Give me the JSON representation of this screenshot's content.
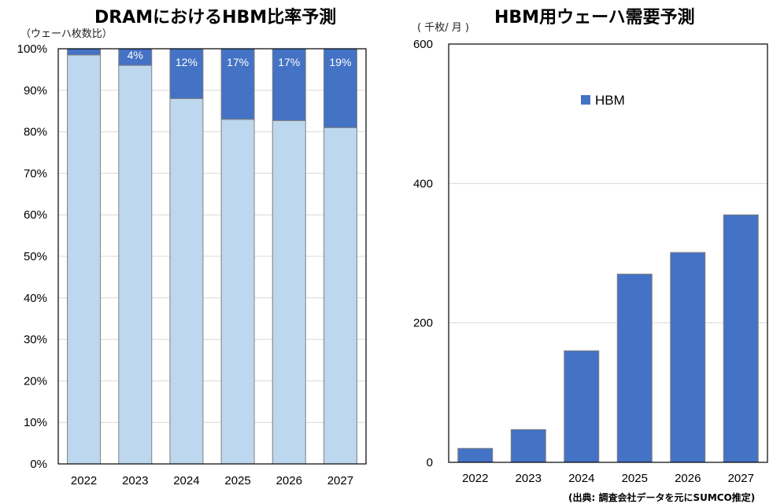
{
  "colors": {
    "base": "#bdd7ee",
    "hbm": "#4472c4",
    "border": "#808080",
    "grid": "#d9d9d9"
  },
  "left": {
    "title": "DRAMにおけるHBM比率予測",
    "unit": "（ウェーハ枚数比）"
  },
  "right": {
    "title": "HBM用ウェーハ需要予測",
    "unit": "( 千枚/ 月 )",
    "legend": "HBM"
  },
  "source": "(出典: 調査会社データを元にSUMCO推定)",
  "chart_data": [
    {
      "type": "bar",
      "stacked": true,
      "title": "DRAMにおけるHBM比率予測",
      "ylabel": "（ウェーハ枚数比）",
      "categories": [
        "2022",
        "2023",
        "2024",
        "2025",
        "2026",
        "2027"
      ],
      "yticks": [
        "0%",
        "10%",
        "20%",
        "30%",
        "40%",
        "50%",
        "60%",
        "70%",
        "80%",
        "90%",
        "100%"
      ],
      "ylim": [
        0,
        100
      ],
      "series": [
        {
          "values": [
            98.5,
            96,
            88,
            83,
            82.7,
            81
          ]
        },
        {
          "values": [
            1.5,
            4,
            12,
            17,
            17.3,
            19
          ]
        }
      ],
      "data_labels": [
        "",
        "4%",
        "12%",
        "17%",
        "17%",
        "19%"
      ],
      "grid": true
    },
    {
      "type": "bar",
      "title": "HBM用ウェーハ需要予測",
      "ylabel": "( 千枚/ 月 )",
      "categories": [
        "2022",
        "2023",
        "2024",
        "2025",
        "2026",
        "2027"
      ],
      "yticks": [
        "0",
        "200",
        "400",
        "600"
      ],
      "ylim": [
        0,
        600
      ],
      "series": [
        {
          "name": "HBM",
          "values": [
            20,
            47,
            160,
            270,
            301,
            355
          ]
        }
      ],
      "legend": "inside-top",
      "grid": true
    }
  ]
}
